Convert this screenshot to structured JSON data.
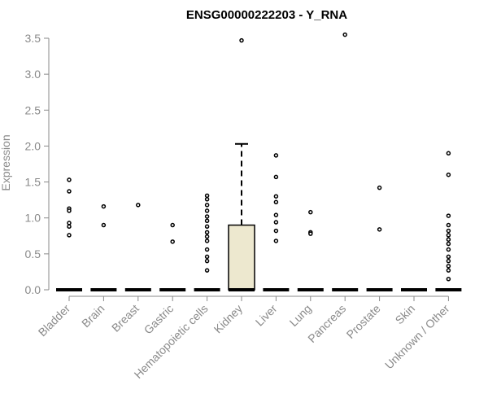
{
  "chart_data": {
    "type": "boxplot",
    "title": "ENSG00000222203 - Y_RNA",
    "ylabel": "Expression",
    "xlabel": "",
    "ylim": [
      0,
      3.5
    ],
    "yticks": [
      0.0,
      0.5,
      1.0,
      1.5,
      2.0,
      2.5,
      3.0,
      3.5
    ],
    "ytick_labels": [
      "0.0",
      "0.5",
      "1.0",
      "1.5",
      "2.0",
      "2.5",
      "3.0",
      "3.5"
    ],
    "box_fill": "#ede8cf",
    "categories": [
      "Bladder",
      "Brain",
      "Breast",
      "Gastric",
      "Hematopoietic cells",
      "Kidney",
      "Liver",
      "Lung",
      "Pancreas",
      "Prostate",
      "Skin",
      "Unknown / Other"
    ],
    "boxes": [
      {
        "category": "Bladder",
        "q1": 0,
        "median": 0,
        "q3": 0,
        "whisker_low": 0,
        "whisker_high": 0,
        "outliers": [
          1.53,
          1.37,
          1.13,
          1.1,
          0.93,
          0.88,
          0.76
        ]
      },
      {
        "category": "Brain",
        "q1": 0,
        "median": 0,
        "q3": 0,
        "whisker_low": 0,
        "whisker_high": 0,
        "outliers": [
          1.16,
          0.9
        ]
      },
      {
        "category": "Breast",
        "q1": 0,
        "median": 0,
        "q3": 0,
        "whisker_low": 0,
        "whisker_high": 0,
        "outliers": [
          1.18
        ]
      },
      {
        "category": "Gastric",
        "q1": 0,
        "median": 0,
        "q3": 0,
        "whisker_low": 0,
        "whisker_high": 0,
        "outliers": [
          0.9,
          0.67
        ]
      },
      {
        "category": "Hematopoietic cells",
        "q1": 0,
        "median": 0,
        "q3": 0,
        "whisker_low": 0,
        "whisker_high": 0,
        "outliers": [
          1.31,
          1.26,
          1.18,
          1.1,
          1.02,
          0.96,
          0.88,
          0.8,
          0.74,
          0.68,
          0.56,
          0.46,
          0.4,
          0.27
        ]
      },
      {
        "category": "Kidney",
        "q1": 0,
        "median": 0,
        "q3": 0.9,
        "whisker_low": 0,
        "whisker_high": 2.03,
        "outliers": [
          3.47
        ]
      },
      {
        "category": "Liver",
        "q1": 0,
        "median": 0,
        "q3": 0,
        "whisker_low": 0,
        "whisker_high": 0,
        "outliers": [
          1.87,
          1.57,
          1.3,
          1.22,
          1.04,
          0.94,
          0.82,
          0.68
        ]
      },
      {
        "category": "Lung",
        "q1": 0,
        "median": 0,
        "q3": 0,
        "whisker_low": 0,
        "whisker_high": 0,
        "outliers": [
          1.08,
          0.8,
          0.78
        ]
      },
      {
        "category": "Pancreas",
        "q1": 0,
        "median": 0,
        "q3": 0,
        "whisker_low": 0,
        "whisker_high": 0,
        "outliers": [
          3.55
        ]
      },
      {
        "category": "Prostate",
        "q1": 0,
        "median": 0,
        "q3": 0,
        "whisker_low": 0,
        "whisker_high": 0,
        "outliers": [
          1.42,
          0.84
        ]
      },
      {
        "category": "Skin",
        "q1": 0,
        "median": 0,
        "q3": 0,
        "whisker_low": 0,
        "whisker_high": 0,
        "outliers": []
      },
      {
        "category": "Unknown / Other",
        "q1": 0,
        "median": 0,
        "q3": 0,
        "whisker_low": 0,
        "whisker_high": 0,
        "outliers": [
          1.9,
          1.6,
          1.03,
          0.9,
          0.82,
          0.76,
          0.7,
          0.64,
          0.56,
          0.46,
          0.4,
          0.33,
          0.27,
          0.15
        ]
      }
    ]
  }
}
